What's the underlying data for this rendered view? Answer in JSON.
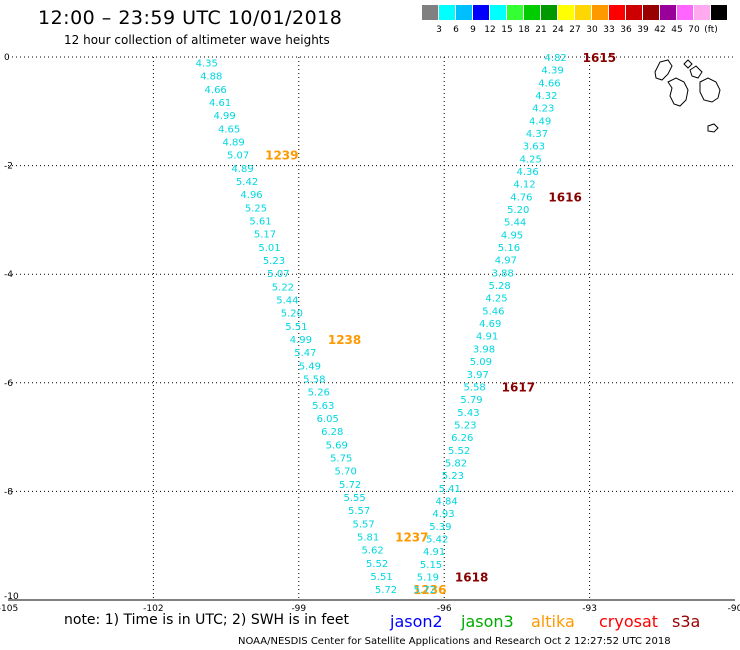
{
  "header": {
    "title": "12:00 – 23:59 UTC 10/01/2018",
    "subtitle": "12 hour collection of altimeter wave heights"
  },
  "scale": {
    "colors": [
      "#808080",
      "#00ffff",
      "#00bfff",
      "#0000ff",
      "#00ffff",
      "#33ff33",
      "#00cc00",
      "#009900",
      "#ffff00",
      "#ffd700",
      "#ff9900",
      "#ff0000",
      "#cc0000",
      "#990000",
      "#990099",
      "#ff66ff",
      "#ffaaee",
      "#000000"
    ],
    "labels": [
      "3",
      "6",
      "9",
      "12",
      "15",
      "18",
      "21",
      "24",
      "27",
      "30",
      "33",
      "36",
      "39",
      "42",
      "45",
      "70",
      "(ft)"
    ]
  },
  "axes": {
    "x_ticks": [
      "-105",
      "-102",
      "-99",
      "-96",
      "-93",
      "-90"
    ],
    "y_ticks": [
      "0",
      "-2",
      "-4",
      "-6",
      "-8",
      "-10"
    ],
    "lon_range": [
      -105,
      -90
    ],
    "lat_range": [
      -10,
      0
    ]
  },
  "tracks": [
    {
      "name": "track-west",
      "start": [
        -100.9,
        -0.1
      ],
      "end": [
        -97.2,
        -9.8
      ],
      "values": [
        "4.35",
        "4.88",
        "4.66",
        "4.61",
        "4.99",
        "4.65",
        "4.89",
        "5.07",
        "4.89",
        "5.42",
        "4.96",
        "5.25",
        "5.61",
        "5.17",
        "5.01",
        "5.23",
        "5.07",
        "5.22",
        "5.44",
        "5.20",
        "5.51",
        "4.99",
        "5.47",
        "5.49",
        "5.58",
        "5.26",
        "5.63",
        "6.05",
        "6.28",
        "5.69",
        "5.75",
        "5.70",
        "5.72",
        "5.55",
        "5.57",
        "5.57",
        "5.81",
        "5.62",
        "5.52",
        "5.51",
        "5.72"
      ],
      "times": [
        {
          "label": "1239",
          "index": 7,
          "color": "#ff9900"
        },
        {
          "label": "1238",
          "index": 21,
          "color": "#ff9900"
        },
        {
          "label": "1237",
          "index": 36,
          "color": "#ff9900"
        },
        {
          "label": "1236",
          "index": 40,
          "color": "#ff9900"
        }
      ]
    },
    {
      "name": "track-east",
      "start": [
        -93.7,
        0.0
      ],
      "end": [
        -96.4,
        -9.8
      ],
      "values": [
        "4.82",
        "4.39",
        "4.66",
        "4.32",
        "4.23",
        "4.49",
        "4.37",
        "3.63",
        "4.25",
        "4.36",
        "4.12",
        "4.76",
        "5.20",
        "5.44",
        "4.95",
        "5.16",
        "4.97",
        "3.88",
        "5.28",
        "4.25",
        "5.46",
        "4.69",
        "4.91",
        "3.98",
        "5.09",
        "3.97",
        "5.58",
        "5.79",
        "5.43",
        "5.23",
        "6.26",
        "5.52",
        "5.82",
        "5.23",
        "5.41",
        "4.84",
        "4.93",
        "5.39",
        "5.42",
        "4.91",
        "5.15",
        "5.19",
        "5.72"
      ],
      "times": [
        {
          "label": "1615",
          "index": 0,
          "color": "#880000"
        },
        {
          "label": "1616",
          "index": 11,
          "color": "#880000"
        },
        {
          "label": "1617",
          "index": 26,
          "color": "#880000"
        },
        {
          "label": "1618",
          "index": 41,
          "color": "#880000"
        }
      ]
    }
  ],
  "note": "note:  1) Time is in UTC;  2) SWH is in feet",
  "legend": [
    {
      "label": "jason2",
      "color": "#0000ff"
    },
    {
      "label": "jason3",
      "color": "#00aa00"
    },
    {
      "label": "altika",
      "color": "#ff9900"
    },
    {
      "label": "cryosat",
      "color": "#ff0000"
    },
    {
      "label": "s3a",
      "color": "#990000"
    }
  ],
  "footer": "NOAA/NESDIS Center for Satellite Applications and Research    Oct  2 12:27:52 UTC 2018"
}
